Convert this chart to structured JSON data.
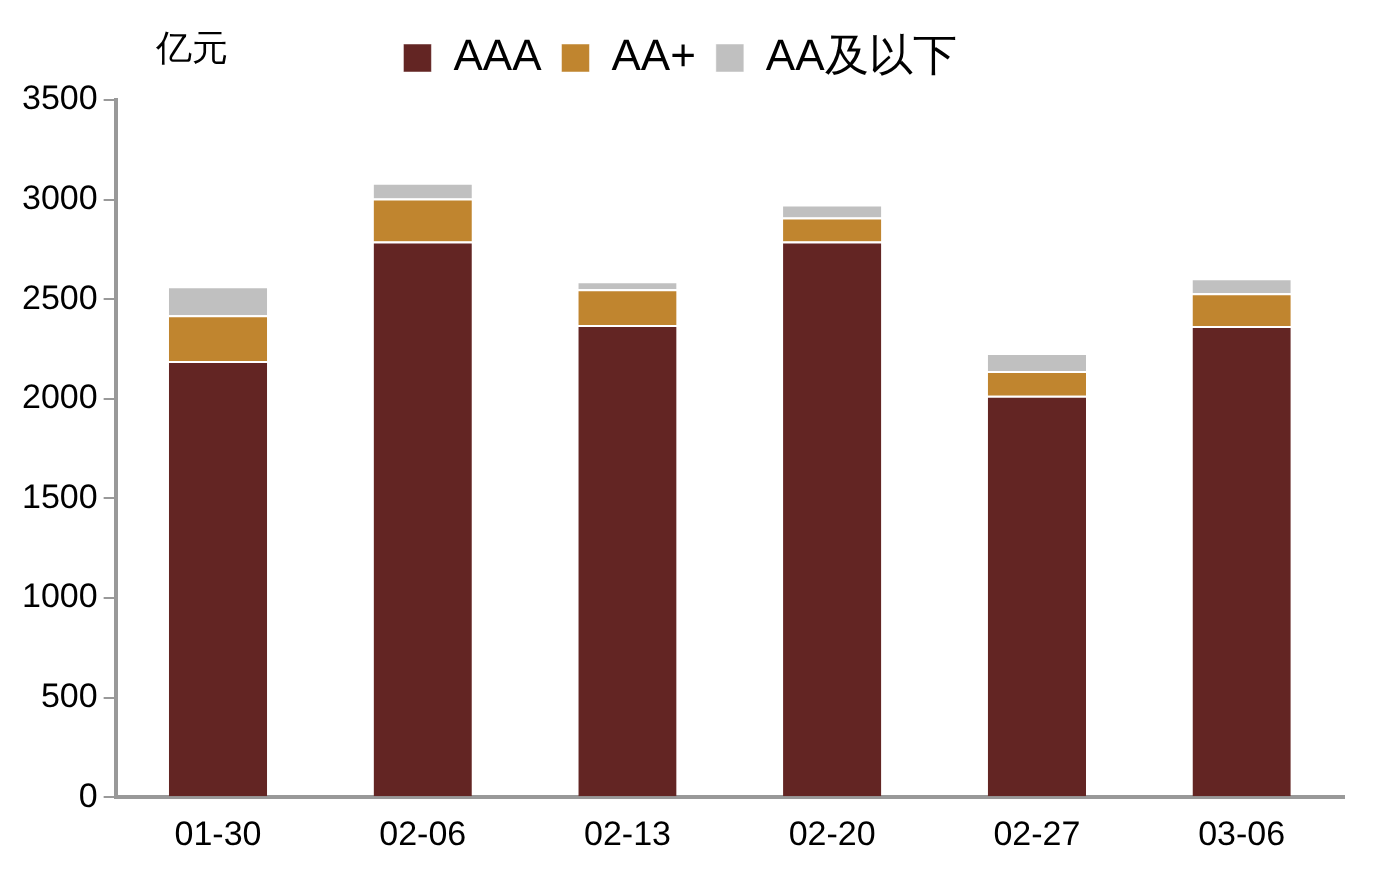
{
  "chart_data": {
    "type": "bar",
    "ylabel": "亿元",
    "categories": [
      "01-30",
      "02-06",
      "02-13",
      "02-20",
      "02-27",
      "03-06"
    ],
    "stacked": true,
    "series": [
      {
        "name": "AAA",
        "color": "#632523",
        "values": [
          2190,
          2790,
          2370,
          2790,
          2015,
          2365
        ]
      },
      {
        "name": "AA+",
        "color": "#c0852f",
        "values": [
          230,
          215,
          180,
          120,
          125,
          165
        ]
      },
      {
        "name": "AA及以下",
        "color": "#c0c0c0",
        "values": [
          145,
          80,
          40,
          65,
          90,
          75
        ]
      }
    ],
    "ylim": [
      0,
      3500
    ],
    "yticks": [
      0,
      500,
      1000,
      1500,
      2000,
      2500,
      3000,
      3500
    ],
    "grid": false,
    "legend": "top"
  }
}
